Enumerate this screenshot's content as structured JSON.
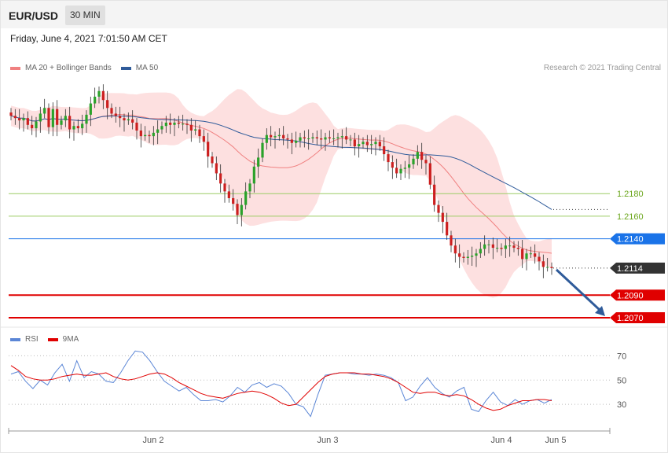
{
  "header": {
    "symbol": "EUR/USD",
    "timeframe": "30 MIN"
  },
  "datetime": "Friday, June 4, 2021 7:01:50 AM CET",
  "legend": {
    "main": [
      {
        "label": "MA 20 + Bollinger Bands",
        "color": "#f08080"
      },
      {
        "label": "MA 50",
        "color": "#2f5b9a"
      }
    ],
    "rsi": [
      {
        "label": "RSI",
        "color": "#5b86d6"
      },
      {
        "label": "9MA",
        "color": "#e00000"
      }
    ]
  },
  "credit": "Research © 2021 Trading Central",
  "colors": {
    "up": "#2aa22a",
    "down": "#cc1f1f",
    "band": "#fde0e0",
    "ma20": "#f08080",
    "ma50": "#2f5b9a",
    "green_level": "#9ccc65",
    "blue_level": "#1a73e8",
    "red_level": "#e00000",
    "current": "#333333",
    "arrow": "#2f5b9a"
  },
  "chart_data": [
    {
      "type": "candlestick",
      "title": "EUR/USD",
      "timeframe": "30 MIN",
      "x_tick_labels": [
        "Jun 2",
        "Jun 3",
        "Jun 4",
        "Jun 5"
      ],
      "ylim": [
        1.2063,
        1.2282
      ],
      "levels": [
        {
          "value": 1.218,
          "label": "1.2180",
          "kind": "resistance"
        },
        {
          "value": 1.216,
          "label": "1.2160",
          "kind": "resistance"
        },
        {
          "value": 1.214,
          "label": "1.2140",
          "kind": "ma50"
        },
        {
          "value": 1.2114,
          "label": "1.2114",
          "kind": "current"
        },
        {
          "value": 1.209,
          "label": "1.2090",
          "kind": "support"
        },
        {
          "value": 1.207,
          "label": "1.2070",
          "kind": "support"
        }
      ],
      "close": [
        1.2249,
        1.2247,
        1.2245,
        1.2247,
        1.2241,
        1.2238,
        1.2244,
        1.2251,
        1.2256,
        1.2239,
        1.2255,
        1.2241,
        1.2245,
        1.2249,
        1.2237,
        1.224,
        1.2238,
        1.2242,
        1.225,
        1.226,
        1.2266,
        1.2271,
        1.2263,
        1.2256,
        1.2251,
        1.2249,
        1.2247,
        1.2245,
        1.2246,
        1.2243,
        1.2236,
        1.2231,
        1.2232,
        1.2231,
        1.2234,
        1.2237,
        1.224,
        1.2243,
        1.2241,
        1.2243,
        1.2242,
        1.2242,
        1.2241,
        1.2236,
        1.2237,
        1.2231,
        1.2226,
        1.2213,
        1.2207,
        1.2198,
        1.2189,
        1.2182,
        1.2176,
        1.2171,
        1.2161,
        1.217,
        1.2182,
        1.2189,
        1.2204,
        1.2212,
        1.2225,
        1.2232,
        1.223,
        1.2231,
        1.2232,
        1.2229,
        1.2228,
        1.2225,
        1.2227,
        1.223,
        1.2229,
        1.2229,
        1.223,
        1.2229,
        1.2228,
        1.223,
        1.2229,
        1.2229,
        1.223,
        1.2231,
        1.2228,
        1.2228,
        1.2222,
        1.2224,
        1.2226,
        1.2223,
        1.2224,
        1.2226,
        1.2222,
        1.2215,
        1.2208,
        1.2203,
        1.2198,
        1.2202,
        1.2203,
        1.2206,
        1.2211,
        1.2217,
        1.221,
        1.2207,
        1.2188,
        1.217,
        1.2163,
        1.2155,
        1.2143,
        1.2134,
        1.2127,
        1.2124,
        1.2123,
        1.2124,
        1.2125,
        1.2127,
        1.2131,
        1.2135,
        1.2135,
        1.2132,
        1.2132,
        1.2131,
        1.2134,
        1.2134,
        1.2132,
        1.2131,
        1.2122,
        1.2127,
        1.2127,
        1.2124,
        1.212,
        1.2115,
        1.2115,
        1.2114
      ],
      "rsi": {
        "series": [
          {
            "name": "RSI",
            "values": [
              55,
              57,
              49,
              43,
              50,
              46,
              56,
              63,
              49,
              66,
              52,
              57,
              55,
              49,
              48,
              56,
              66,
              74,
              73,
              66,
              57,
              49,
              45,
              41,
              44,
              38,
              33,
              33,
              34,
              32,
              37,
              44,
              40,
              46,
              48,
              44,
              47,
              45,
              39,
              30,
              28,
              20,
              38,
              54,
              55,
              56,
              56,
              55,
              55,
              54,
              55,
              54,
              52,
              48,
              33,
              36,
              45,
              52,
              44,
              39,
              36,
              41,
              44,
              26,
              24,
              33,
              40,
              32,
              29,
              34,
              30,
              33,
              34,
              31,
              34
            ]
          },
          {
            "name": "9MA",
            "values": [
              62,
              58,
              53,
              51,
              50,
              50,
              51,
              53,
              54,
              55,
              54,
              54,
              55,
              56,
              53,
              51,
              50,
              51,
              53,
              55,
              56,
              55,
              52,
              48,
              45,
              42,
              39,
              37,
              36,
              35,
              37,
              39,
              40,
              41,
              40,
              38,
              35,
              31,
              29,
              30,
              36,
              42,
              48,
              53,
              55,
              56,
              56,
              56,
              55,
              55,
              54,
              53,
              51,
              48,
              44,
              40,
              39,
              40,
              40,
              38,
              37,
              38,
              37,
              34,
              30,
              27,
              25,
              26,
              29,
              31,
              33,
              33,
              34,
              34,
              33
            ]
          }
        ],
        "ylim": [
          10,
          80
        ],
        "tick_labels": [
          "70",
          "50",
          "30"
        ],
        "tick_values": [
          70,
          50,
          30
        ]
      }
    }
  ]
}
